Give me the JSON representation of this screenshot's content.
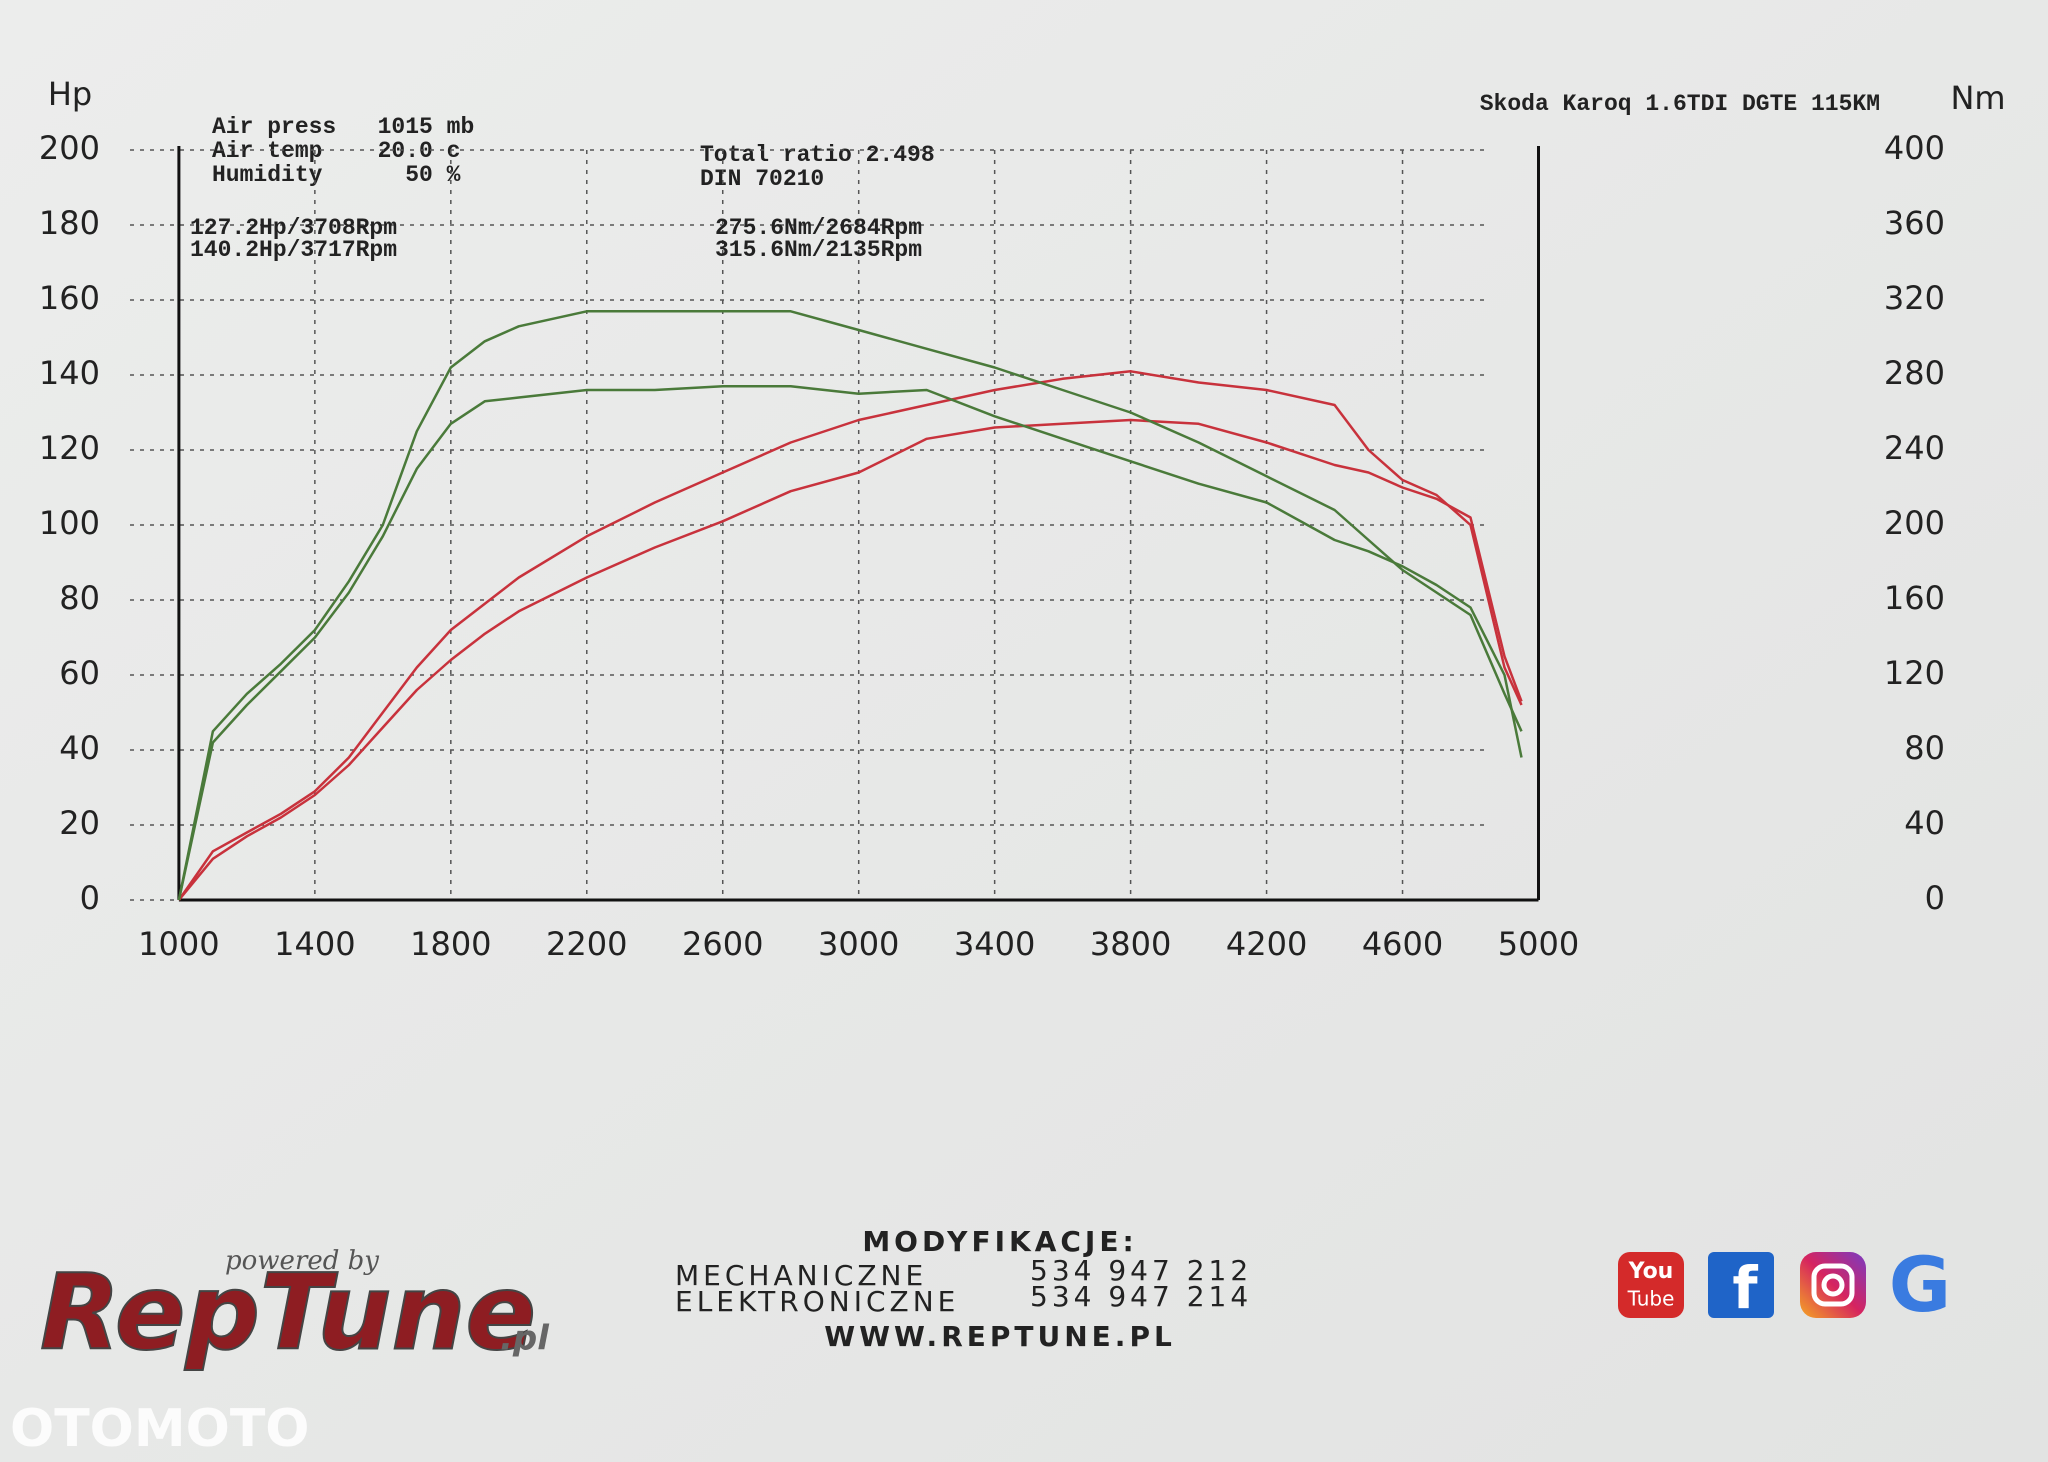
{
  "chart_data": {
    "type": "line",
    "title": "Skoda Karoq 1.6TDI DGTE 115KM",
    "y_label": "Hp",
    "y2_label": "Nm",
    "annotations": [
      "Air press   1015 mb",
      "Air temp    20.0 c",
      "Humidity      50 %",
      "Total ratio 2.498",
      "DIN 70210"
    ],
    "x": [
      1000,
      1100,
      1200,
      1300,
      1400,
      1500,
      1600,
      1700,
      1800,
      1900,
      2000,
      2200,
      2400,
      2600,
      2800,
      3000,
      3200,
      3400,
      3600,
      3800,
      4000,
      4200,
      4400,
      4500,
      4600,
      4700,
      4800,
      4900,
      4950
    ],
    "xlim": [
      1000,
      5000
    ],
    "xticks": [
      1000,
      1400,
      1800,
      2200,
      2600,
      3000,
      3400,
      3800,
      4200,
      4600,
      5000
    ],
    "ylim": [
      0,
      200
    ],
    "yticks": [
      0,
      20,
      40,
      60,
      80,
      100,
      120,
      140,
      160,
      180,
      200
    ],
    "y2lim": [
      0,
      400
    ],
    "y2ticks": [
      0,
      40,
      80,
      120,
      160,
      200,
      240,
      280,
      320,
      360,
      400
    ],
    "grid": true,
    "series": [
      {
        "name": "127.2Hp/3708Rpm",
        "color": "#c8323c",
        "values": [
          0,
          11,
          17,
          22,
          28,
          36,
          46,
          56,
          64,
          71,
          77,
          86,
          94,
          101,
          109,
          114,
          123,
          126,
          127,
          128,
          127,
          122,
          116,
          114,
          110,
          107,
          102,
          65,
          53
        ]
      },
      {
        "name": "140.2Hp/3717Rpm",
        "color": "#c8323c",
        "values": [
          0,
          13,
          18,
          23,
          29,
          38,
          50,
          62,
          72,
          79,
          86,
          97,
          106,
          114,
          122,
          128,
          132,
          136,
          139,
          141,
          138,
          136,
          132,
          120,
          112,
          108,
          100,
          62,
          52
        ]
      },
      {
        "name": "275.6Nm/2684Rpm",
        "color": "#4a7a3a",
        "axis": "y2",
        "values": [
          0,
          84,
          104,
          122,
          140,
          164,
          194,
          230,
          254,
          266,
          268,
          272,
          272,
          274,
          274,
          270,
          272,
          258,
          246,
          234,
          222,
          212,
          192,
          186,
          178,
          168,
          156,
          120,
          76
        ]
      },
      {
        "name": "315.6Nm/2135Rpm",
        "color": "#4a7a3a",
        "axis": "y2",
        "values": [
          0,
          90,
          110,
          126,
          144,
          170,
          200,
          250,
          284,
          298,
          306,
          314,
          314,
          314,
          314,
          304,
          294,
          284,
          272,
          260,
          244,
          226,
          208,
          192,
          176,
          164,
          152,
          110,
          90
        ]
      }
    ]
  },
  "footer": {
    "powered": "powered by",
    "logo": "RepTune",
    "logo_suffix": ".pl",
    "heading": "MODYFIKACJE:",
    "rows": [
      [
        "MECHANICZNE",
        "534 947 212"
      ],
      [
        "ELEKTRONICZNE",
        "534 947 214"
      ]
    ],
    "url": "WWW.REPTUNE.PL",
    "social": [
      "You",
      "Tube",
      "f",
      "G"
    ],
    "watermark": "OTOMOTO"
  }
}
